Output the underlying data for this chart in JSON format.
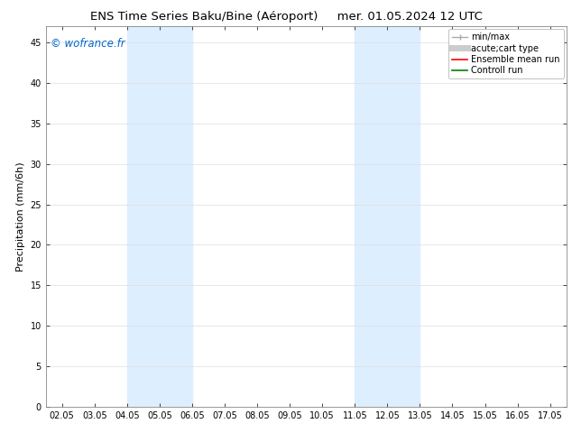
{
  "title_left": "ENS Time Series Baku/Bine (Aéroport)",
  "title_right": "mer. 01.05.2024 12 UTC",
  "ylabel": "Precipitation (mm/6h)",
  "xlabel": "",
  "watermark": "© wofrance.fr",
  "watermark_color": "#0066cc",
  "ylim": [
    0,
    47
  ],
  "yticks": [
    0,
    5,
    10,
    15,
    20,
    25,
    30,
    35,
    40,
    45
  ],
  "xtick_labels": [
    "02.05",
    "03.05",
    "04.05",
    "05.05",
    "06.05",
    "07.05",
    "08.05",
    "09.05",
    "10.05",
    "11.05",
    "12.05",
    "13.05",
    "14.05",
    "15.05",
    "16.05",
    "17.05"
  ],
  "xtick_positions": [
    2,
    3,
    4,
    5,
    6,
    7,
    8,
    9,
    10,
    11,
    12,
    13,
    14,
    15,
    16,
    17
  ],
  "xlim": [
    1.5,
    17.5
  ],
  "shaded_bands": [
    {
      "xmin": 4.0,
      "xmax": 6.0,
      "color": "#ddeeff"
    },
    {
      "xmin": 11.0,
      "xmax": 13.0,
      "color": "#ddeeff"
    }
  ],
  "background_color": "#ffffff",
  "plot_bg_color": "#ffffff",
  "grid_color": "#dddddd",
  "legend_items": [
    {
      "label": "min/max",
      "color": "#aaaaaa",
      "lw": 1.0
    },
    {
      "label": "acute;cart type",
      "color": "#cccccc",
      "lw": 5
    },
    {
      "label": "Ensemble mean run",
      "color": "#ff0000",
      "lw": 1.2
    },
    {
      "label": "Controll run",
      "color": "#008000",
      "lw": 1.2
    }
  ],
  "title_fontsize": 9.5,
  "tick_fontsize": 7,
  "ylabel_fontsize": 8,
  "watermark_fontsize": 8.5,
  "legend_fontsize": 7
}
